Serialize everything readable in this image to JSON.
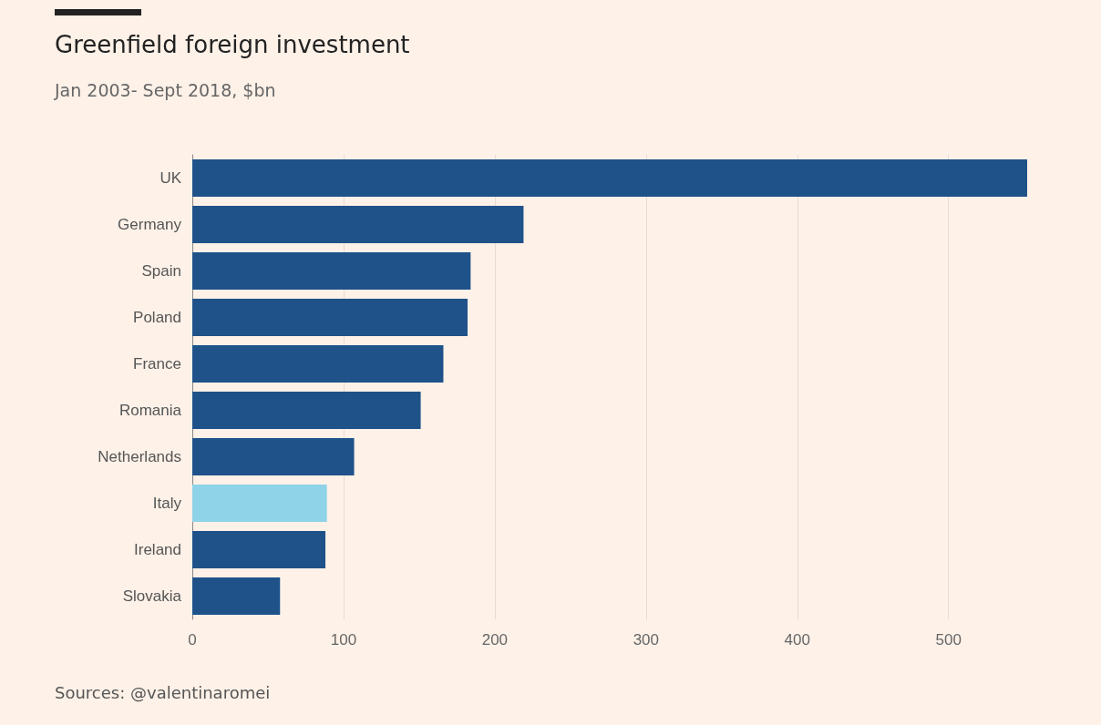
{
  "chart_data": {
    "type": "bar",
    "orientation": "horizontal",
    "title": "Greenfield foreign investment",
    "subtitle": "Jan 2003- Sept 2018, $bn",
    "categories": [
      "UK",
      "Germany",
      "Spain",
      "Poland",
      "France",
      "Romania",
      "Netherlands",
      "Italy",
      "Ireland",
      "Slovakia"
    ],
    "values": [
      552,
      219,
      184,
      182,
      166,
      151,
      107,
      89,
      88,
      58
    ],
    "colors": [
      "#1f5289",
      "#1f5289",
      "#1f5289",
      "#1f5289",
      "#1f5289",
      "#1f5289",
      "#1f5289",
      "#8fd3e8",
      "#1f5289",
      "#1f5289"
    ],
    "xlim": [
      0,
      552
    ],
    "xticks": [
      0,
      100,
      200,
      300,
      400,
      500
    ],
    "grid": "x",
    "annotations": [
      "Sources: @valentinaromei"
    ]
  }
}
